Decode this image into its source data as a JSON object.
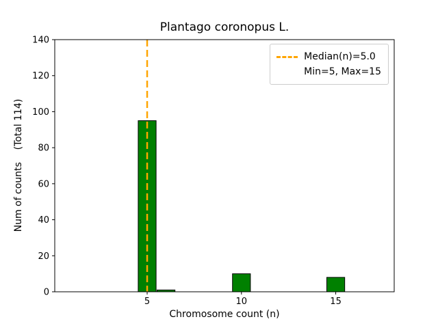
{
  "chart_data": {
    "type": "bar",
    "title": "Plantago coronopus L.",
    "xlabel": "Chromosome count (n)",
    "ylabel": "Num of counts    (Total 114)",
    "total_counts": 114,
    "bars": [
      {
        "x": 5,
        "count": 95
      },
      {
        "x": 6,
        "count": 1
      },
      {
        "x": 10,
        "count": 10
      },
      {
        "x": 15,
        "count": 8
      }
    ],
    "bar_width": 0.95,
    "bar_color": "#008000",
    "bar_edge_color": "#000000",
    "median_line": {
      "x": 5.0,
      "color": "#ffa500",
      "style": "dashed"
    },
    "xlim": [
      0.1,
      18.1
    ],
    "ylim": [
      0,
      140
    ],
    "xticks": [
      5,
      10,
      15
    ],
    "yticks": [
      0,
      20,
      40,
      60,
      80,
      100,
      120,
      140
    ],
    "grid": false,
    "legend": {
      "position": "upper-right",
      "entries": [
        {
          "label": "Median(n)=5.0",
          "symbol": "dashed-line",
          "color": "#ffa500"
        },
        {
          "label": "Min=5, Max=15",
          "symbol": "none",
          "color": "transparent"
        }
      ]
    }
  }
}
